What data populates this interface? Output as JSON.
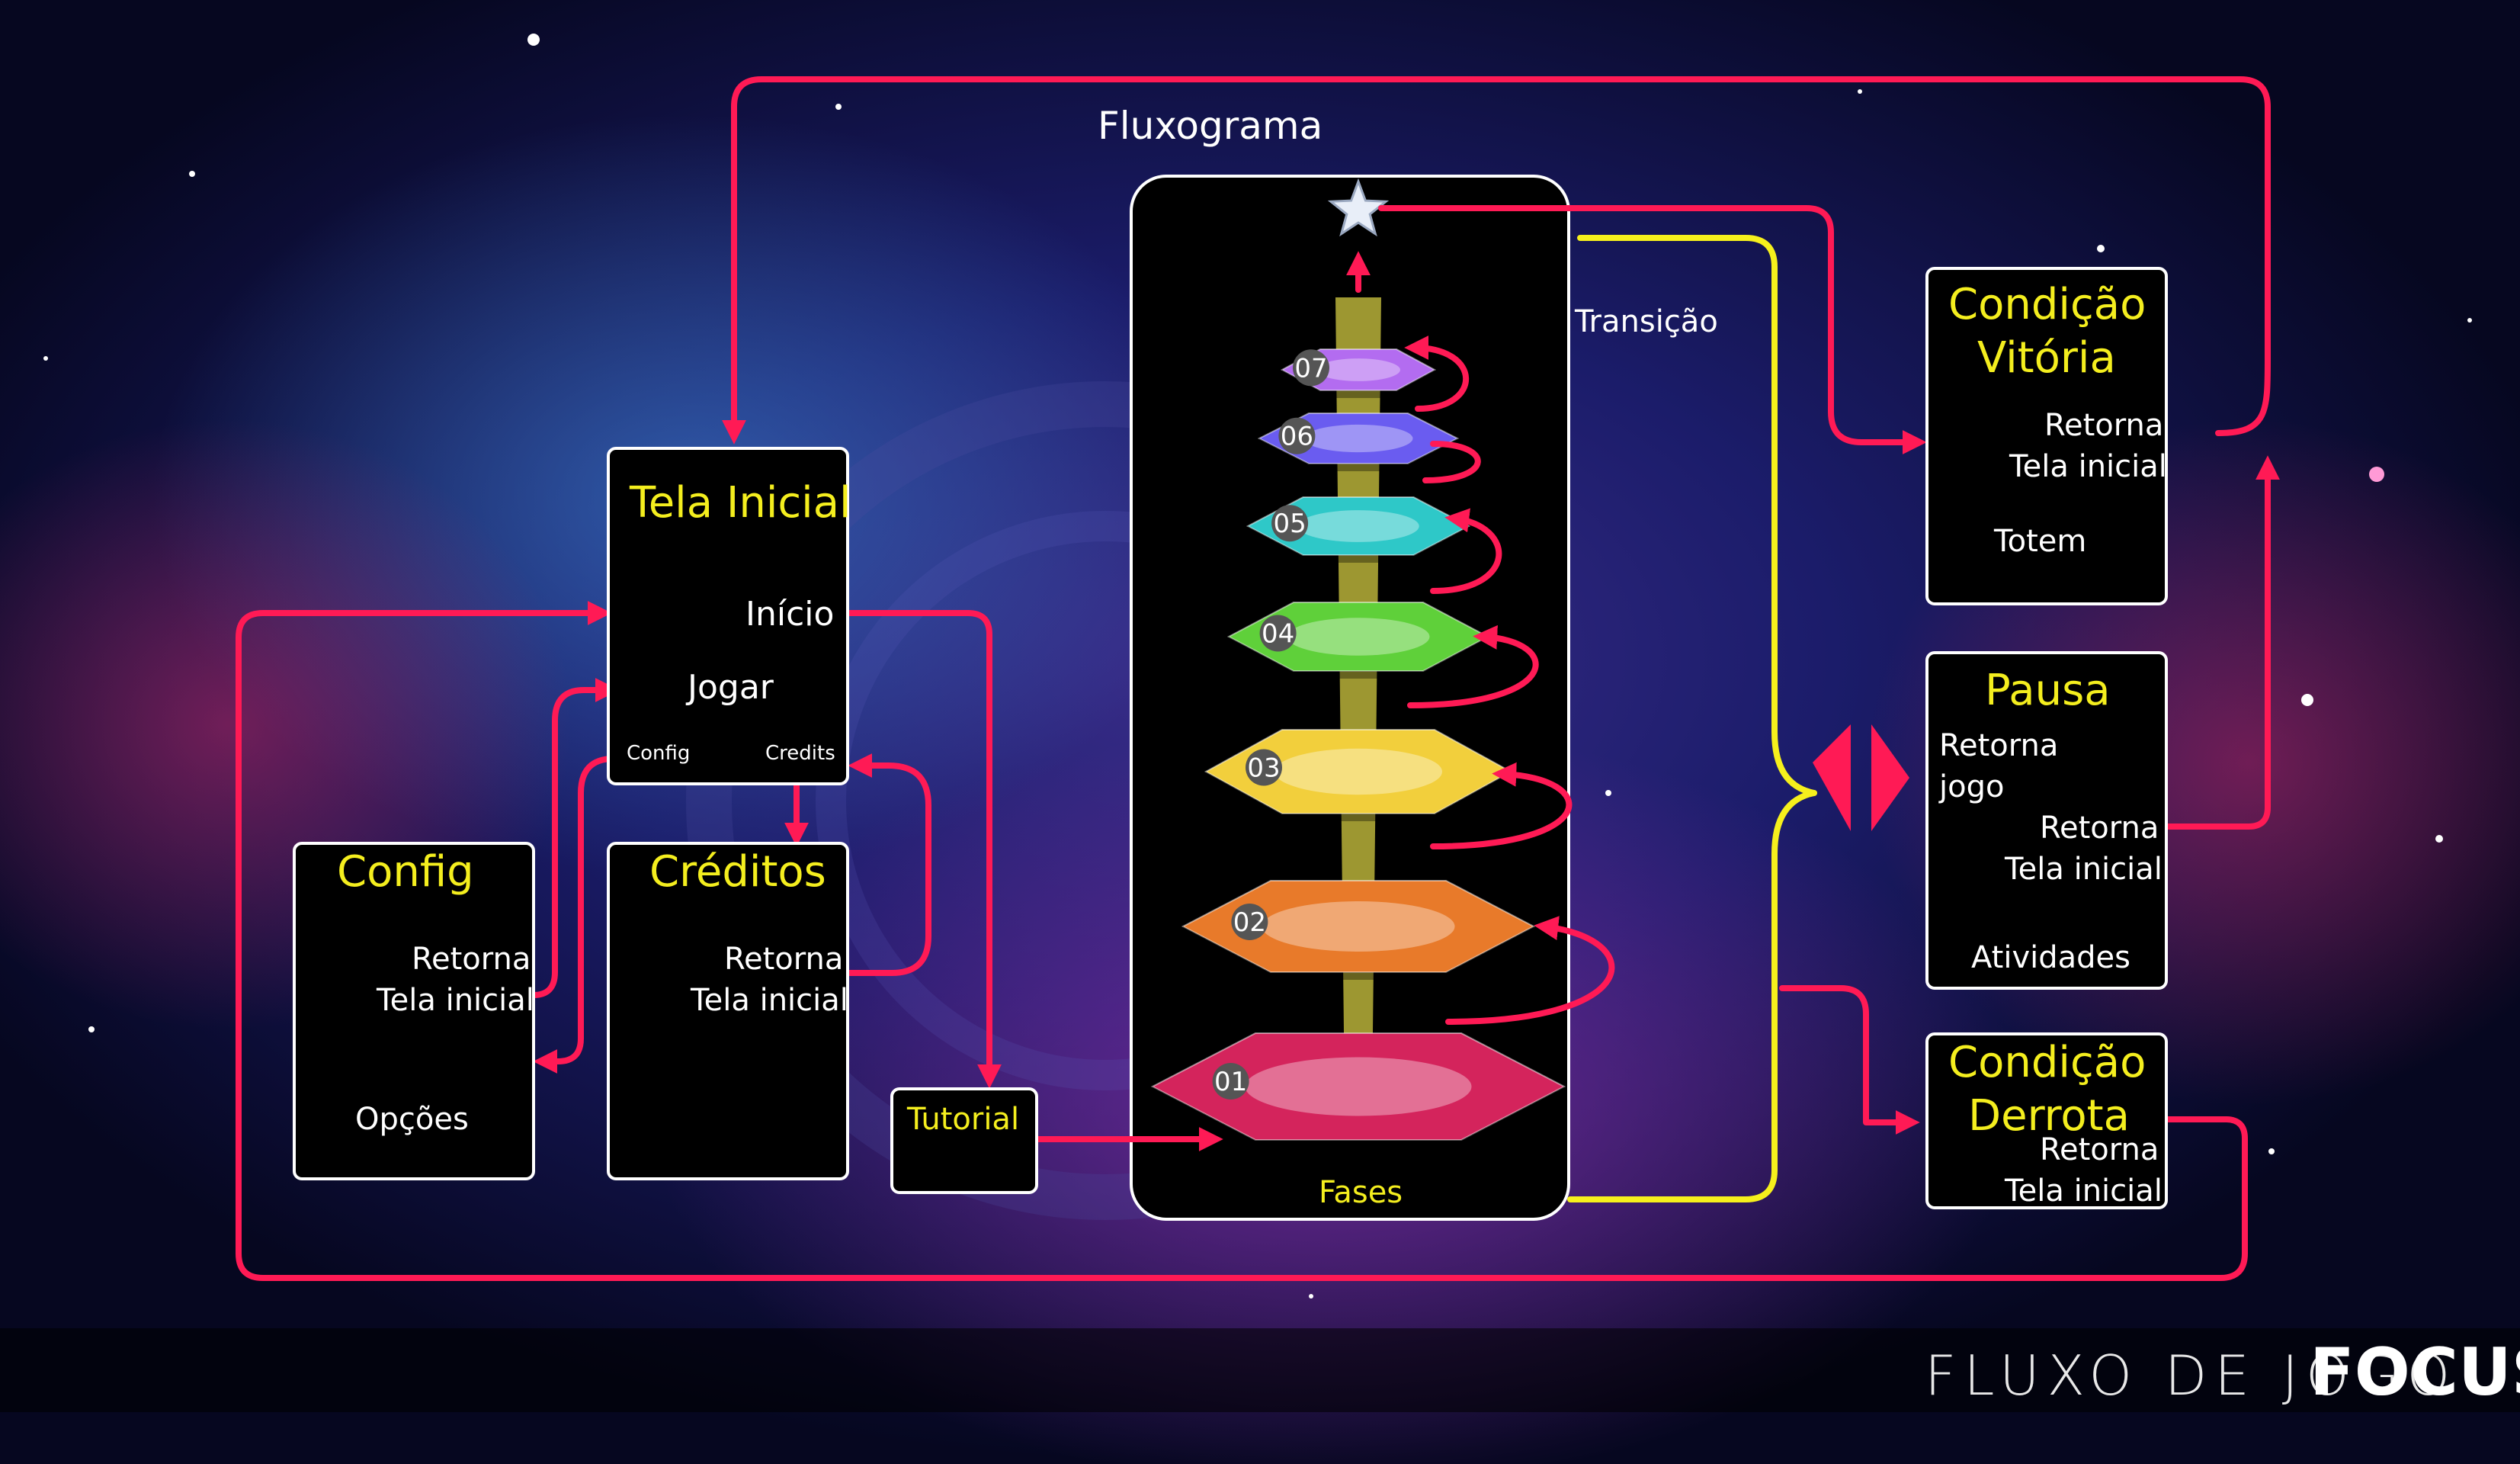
{
  "diagram": {
    "title": "Fluxograma",
    "tela_inicial": {
      "title": "Tela Inicial",
      "inicio": "Início",
      "jogar": "Jogar",
      "config": "Config",
      "credits": "Credits"
    },
    "config": {
      "title": "Config",
      "retorna_1": "Retorna",
      "retorna_2": "Tela inicial",
      "opcoes": "Opções"
    },
    "creditos": {
      "title": "Créditos",
      "retorna_1": "Retorna",
      "retorna_2": "Tela inicial"
    },
    "tutorial": {
      "title": "Tutorial"
    },
    "fases": {
      "label": "Fases",
      "levels": [
        "01",
        "02",
        "03",
        "04",
        "05",
        "06",
        "07"
      ]
    },
    "transicao": "Transição",
    "vitoria": {
      "title_1": "Condição",
      "title_2": "Vitória",
      "retorna_1": "Retorna",
      "retorna_2": "Tela inicial",
      "totem": "Totem"
    },
    "pausa": {
      "title": "Pausa",
      "retorna_jogo_1": "Retorna",
      "retorna_jogo_2": "jogo",
      "retorna_1": "Retorna",
      "retorna_2": "Tela inicial",
      "atividades": "Atividades"
    },
    "derrota": {
      "title_1": "Condição",
      "title_2": "Derrota",
      "retorna_1": "Retorna",
      "retorna_2": "Tela inicial"
    }
  },
  "footer": {
    "title": "FLUXO DE JOGO",
    "logo": "FOCUS"
  },
  "colors": {
    "arrow": "#ff1a55",
    "transition": "#f6f01c",
    "label_yellow": "#f4ee1e",
    "level_colors": [
      "#d4245c",
      "#e87a2a",
      "#f2cf3c",
      "#5fd03a",
      "#2ec8c8",
      "#6a5cf0",
      "#b36cf0"
    ]
  }
}
